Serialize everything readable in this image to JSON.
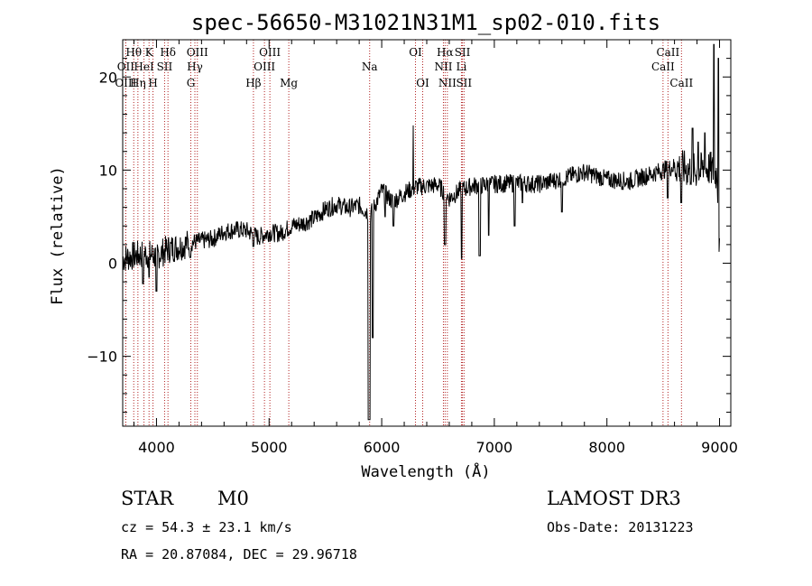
{
  "chart_data": {
    "type": "line",
    "title": "spec-56650-M31021N31M1_sp02-010.fits",
    "xlabel": "Wavelength (Å)",
    "ylabel": "Flux (relative)",
    "xlim": [
      3700,
      9100
    ],
    "ylim": [
      -17.5,
      24
    ],
    "xticks": [
      4000,
      5000,
      6000,
      7000,
      8000,
      9000
    ],
    "yticks": [
      -10,
      0,
      10,
      20
    ],
    "xtick_labels": [
      "4000",
      "5000",
      "6000",
      "7000",
      "8000",
      "9000"
    ],
    "ytick_labels": [
      "−10",
      "0",
      "10",
      "20"
    ],
    "line_color": "#000000",
    "marker_color": "#b22222",
    "continuum": [
      [
        3700,
        0.5
      ],
      [
        3800,
        0.8
      ],
      [
        3900,
        1.0
      ],
      [
        4000,
        0.8
      ],
      [
        4100,
        1.5
      ],
      [
        4200,
        1.8
      ],
      [
        4300,
        2.2
      ],
      [
        4400,
        2.4
      ],
      [
        4500,
        2.6
      ],
      [
        4600,
        3.4
      ],
      [
        4700,
        3.6
      ],
      [
        4800,
        3.5
      ],
      [
        4900,
        2.8
      ],
      [
        5000,
        3.3
      ],
      [
        5100,
        3.2
      ],
      [
        5200,
        4.0
      ],
      [
        5300,
        4.3
      ],
      [
        5400,
        4.8
      ],
      [
        5500,
        5.8
      ],
      [
        5600,
        6.3
      ],
      [
        5700,
        5.9
      ],
      [
        5800,
        6.2
      ],
      [
        5900,
        5.2
      ],
      [
        6000,
        7.8
      ],
      [
        6100,
        6.6
      ],
      [
        6200,
        7.5
      ],
      [
        6300,
        8.2
      ],
      [
        6400,
        8.3
      ],
      [
        6500,
        8.4
      ],
      [
        6600,
        7.0
      ],
      [
        6700,
        7.8
      ],
      [
        6800,
        8.3
      ],
      [
        7000,
        8.5
      ],
      [
        7200,
        8.6
      ],
      [
        7400,
        8.5
      ],
      [
        7600,
        9.1
      ],
      [
        7800,
        9.8
      ],
      [
        8000,
        9.0
      ],
      [
        8200,
        8.8
      ],
      [
        8400,
        9.6
      ],
      [
        8600,
        10.4
      ],
      [
        8800,
        9.8
      ],
      [
        8900,
        10.2
      ],
      [
        8980,
        9.6
      ],
      [
        9000,
        1.0
      ]
    ],
    "features": [
      [
        5889,
        -16.8,
        18
      ],
      [
        5920,
        -8.0,
        14
      ],
      [
        6563,
        2.0,
        14
      ],
      [
        6870,
        0.8,
        12
      ],
      [
        6950,
        3.0,
        10
      ],
      [
        7600,
        5.5,
        14
      ],
      [
        7250,
        6.5,
        10
      ],
      [
        6280,
        14.8,
        6
      ],
      [
        8950,
        23.5,
        10
      ],
      [
        8990,
        22.0,
        6
      ],
      [
        4860,
        1.8,
        12
      ],
      [
        4300,
        0.6,
        10
      ],
      [
        3880,
        -2.2,
        8
      ],
      [
        3935,
        -1.5,
        8
      ],
      [
        4000,
        -3.0,
        10
      ],
      [
        6710,
        0.5,
        10
      ],
      [
        6030,
        5.0,
        10
      ],
      [
        6105,
        4.0,
        10
      ],
      [
        8540,
        7.0,
        10
      ],
      [
        8660,
        6.5,
        10
      ],
      [
        8760,
        14.5,
        8
      ],
      [
        8810,
        13.0,
        8
      ],
      [
        8870,
        14.0,
        8
      ],
      [
        7180,
        4.0,
        8
      ]
    ],
    "noise_seed": 7,
    "lines": [
      {
        "label": "Hθ",
        "wave": 3798,
        "row": 1
      },
      {
        "label": "OII",
        "wave": 3727,
        "row": 2
      },
      {
        "label": "OIII",
        "wave": 3727,
        "row": 3
      },
      {
        "label": "K",
        "wave": 3934,
        "row": 1
      },
      {
        "label": "HeI",
        "wave": 3889,
        "row": 2
      },
      {
        "label": "Hη",
        "wave": 3835,
        "row": 3
      },
      {
        "label": "SII",
        "wave": 4072,
        "row": 2
      },
      {
        "label": "H",
        "wave": 3969,
        "row": 3
      },
      {
        "label": "Hδ",
        "wave": 4102,
        "row": 1
      },
      {
        "label": "OIII",
        "wave": 4363,
        "row": 1
      },
      {
        "label": "Hγ",
        "wave": 4341,
        "row": 2
      },
      {
        "label": "G",
        "wave": 4305,
        "row": 3
      },
      {
        "label": "Hβ",
        "wave": 4861,
        "row": 3
      },
      {
        "label": "OIII",
        "wave": 5007,
        "row": 1
      },
      {
        "label": "OIII",
        "wave": 4959,
        "row": 2
      },
      {
        "label": "Mg",
        "wave": 5175,
        "row": 3
      },
      {
        "label": "Na",
        "wave": 5893,
        "row": 2
      },
      {
        "label": "OI",
        "wave": 6300,
        "row": 1
      },
      {
        "label": "OI",
        "wave": 6364,
        "row": 3
      },
      {
        "label": "Hα",
        "wave": 6563,
        "row": 1
      },
      {
        "label": "NII",
        "wave": 6548,
        "row": 2
      },
      {
        "label": "NII",
        "wave": 6583,
        "row": 3
      },
      {
        "label": "SII",
        "wave": 6717,
        "row": 1
      },
      {
        "label": "Li",
        "wave": 6708,
        "row": 2
      },
      {
        "label": "SII",
        "wave": 6731,
        "row": 3
      },
      {
        "label": "CaII",
        "wave": 8542,
        "row": 1
      },
      {
        "label": "CaII",
        "wave": 8498,
        "row": 2
      },
      {
        "label": "CaII",
        "wave": 8662,
        "row": 3
      }
    ]
  },
  "info": {
    "class_label": "STAR",
    "subclass_label": "M0",
    "survey": "LAMOST DR3",
    "cz": "cz = 54.3 ± 23.1 km/s",
    "obs_date": "Obs-Date: 20131223",
    "radec": "RA =  20.87084, DEC =  29.96718"
  }
}
